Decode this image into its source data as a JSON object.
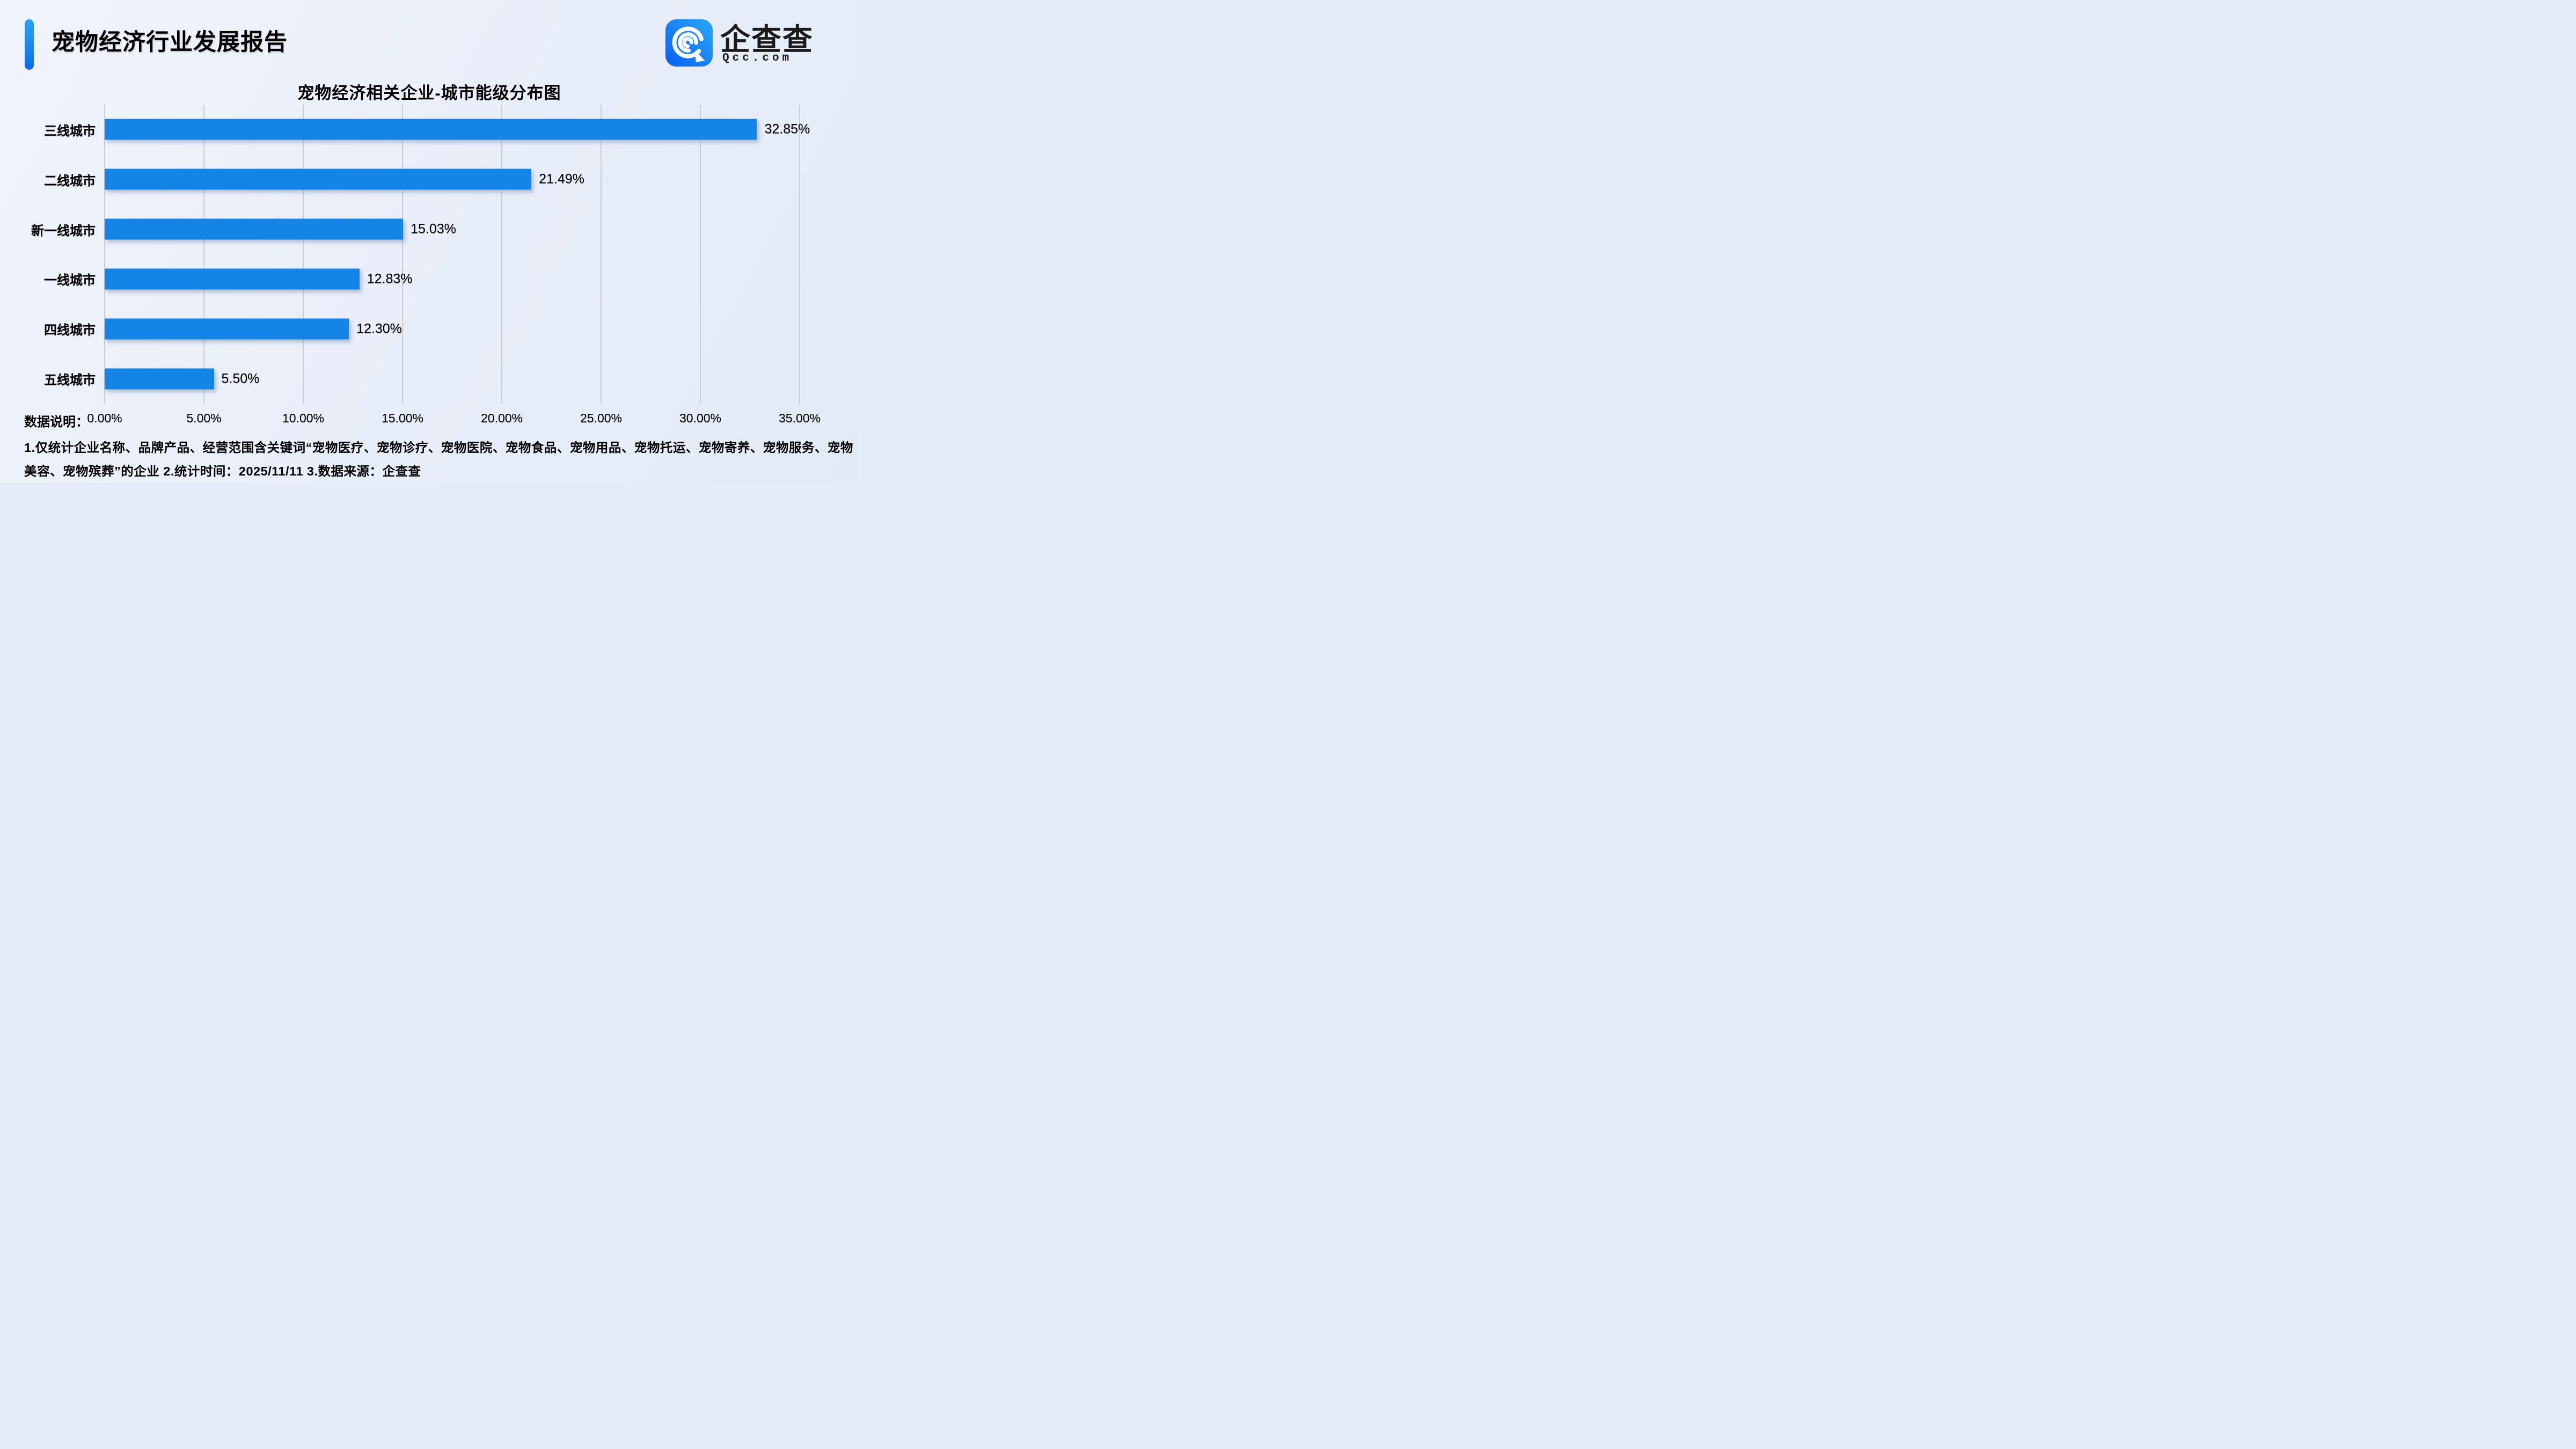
{
  "page": {
    "title": "宠物经济行业发展报告"
  },
  "logo": {
    "brand": "企查查",
    "domain": "Qcc.com"
  },
  "chart_data": {
    "type": "bar",
    "orientation": "horizontal",
    "title": "宠物经济相关企业-城市能级分布图",
    "categories": [
      "三线城市",
      "二线城市",
      "新一线城市",
      "一线城市",
      "四线城市",
      "五线城市"
    ],
    "values": [
      32.85,
      21.49,
      15.03,
      12.83,
      12.3,
      5.5
    ],
    "value_labels": [
      "32.85%",
      "21.49%",
      "15.03%",
      "12.83%",
      "12.30%",
      "5.50%"
    ],
    "x_ticks": [
      "0.00%",
      "5.00%",
      "10.00%",
      "15.00%",
      "20.00%",
      "25.00%",
      "30.00%",
      "35.00%"
    ],
    "x_tick_values": [
      0,
      5,
      10,
      15,
      20,
      25,
      30,
      35
    ],
    "xlim": [
      0,
      35
    ],
    "xlabel": "",
    "ylabel": "",
    "grid": "vertical",
    "legend": "none",
    "bar_color": "#1484e6",
    "gridline_color": "#c9cdd6"
  },
  "footer": {
    "label": "数据说明：",
    "note_line1": "1.仅统计企业名称、品牌产品、经营范围含关键词“宠物医疗、宠物诊疗、宠物医院、宠物食品、宠物用品、宠物托运、宠物寄养、宠物服务、宠物",
    "note_line2": "美容、宠物殡葬”的企业  2.统计时间：2025/11/11  3.数据来源：企查查"
  }
}
